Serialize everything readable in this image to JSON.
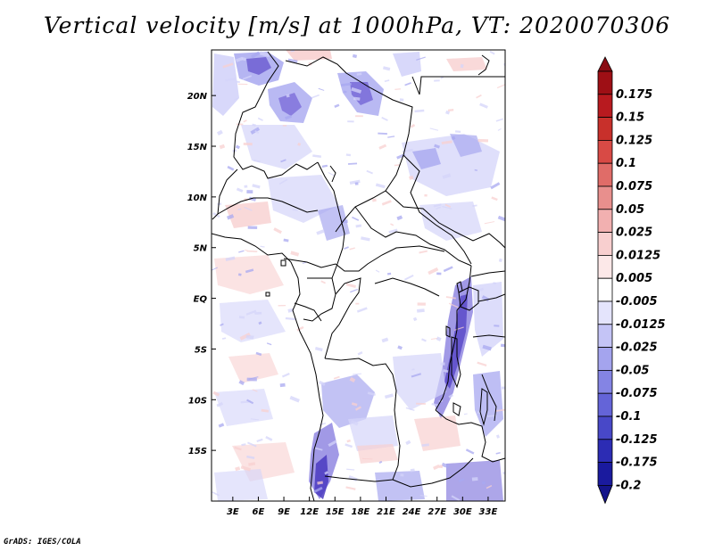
{
  "title": "Vertical velocity [m/s] at 1000hPa, VT: 2020070306",
  "credit": "GrADS: IGES/COLA",
  "map": {
    "lon_range": [
      0.5,
      35.0
    ],
    "lat_range": [
      -20.0,
      24.5
    ],
    "lat_ticks": [
      {
        "value": 20,
        "label": "20N"
      },
      {
        "value": 15,
        "label": "15N"
      },
      {
        "value": 10,
        "label": "10N"
      },
      {
        "value": 5,
        "label": "5N"
      },
      {
        "value": 0,
        "label": "EQ"
      },
      {
        "value": -5,
        "label": "5S"
      },
      {
        "value": -10,
        "label": "10S"
      },
      {
        "value": -15,
        "label": "15S"
      }
    ],
    "lon_ticks": [
      {
        "value": 3,
        "label": "3E"
      },
      {
        "value": 6,
        "label": "6E"
      },
      {
        "value": 9,
        "label": "9E"
      },
      {
        "value": 12,
        "label": "12E"
      },
      {
        "value": 15,
        "label": "15E"
      },
      {
        "value": 18,
        "label": "18E"
      },
      {
        "value": 21,
        "label": "21E"
      },
      {
        "value": 24,
        "label": "24E"
      },
      {
        "value": 27,
        "label": "27E"
      },
      {
        "value": 30,
        "label": "30E"
      },
      {
        "value": 33,
        "label": "33E"
      }
    ],
    "field_colors": {
      "strong_descent": "#6a5ad0",
      "moderate_descent": "#a8a8f0",
      "weak_descent": "#d4d4fa",
      "weak_ascent": "#f8d0d0"
    }
  },
  "colorbar": {
    "levels": [
      {
        "label": "0.175",
        "color": "#9e0f15"
      },
      {
        "label": "0.15",
        "color": "#b81a1f"
      },
      {
        "label": "0.125",
        "color": "#c8302b"
      },
      {
        "label": "0.1",
        "color": "#d84a45"
      },
      {
        "label": "0.075",
        "color": "#e06c68"
      },
      {
        "label": "0.05",
        "color": "#e88f8d"
      },
      {
        "label": "0.025",
        "color": "#f2b0b0"
      },
      {
        "label": "0.0125",
        "color": "#f8cfcf"
      },
      {
        "label": "0.005",
        "color": "#fce8e8"
      },
      {
        "label": "-0.005",
        "color": "#ffffff"
      },
      {
        "label": "-0.0125",
        "color": "#e4e4fc"
      },
      {
        "label": "-0.025",
        "color": "#c4c4f6"
      },
      {
        "label": "-0.05",
        "color": "#a4a4ee"
      },
      {
        "label": "-0.075",
        "color": "#8484e4"
      },
      {
        "label": "-0.1",
        "color": "#6464d8"
      },
      {
        "label": "-0.125",
        "color": "#4848c8"
      },
      {
        "label": "-0.175",
        "color": "#2c2cb4"
      },
      {
        "label": "-0.2",
        "color": "#1a1a9e"
      }
    ],
    "top_color": "#8a0c12",
    "bottom_color": "#14148a"
  }
}
